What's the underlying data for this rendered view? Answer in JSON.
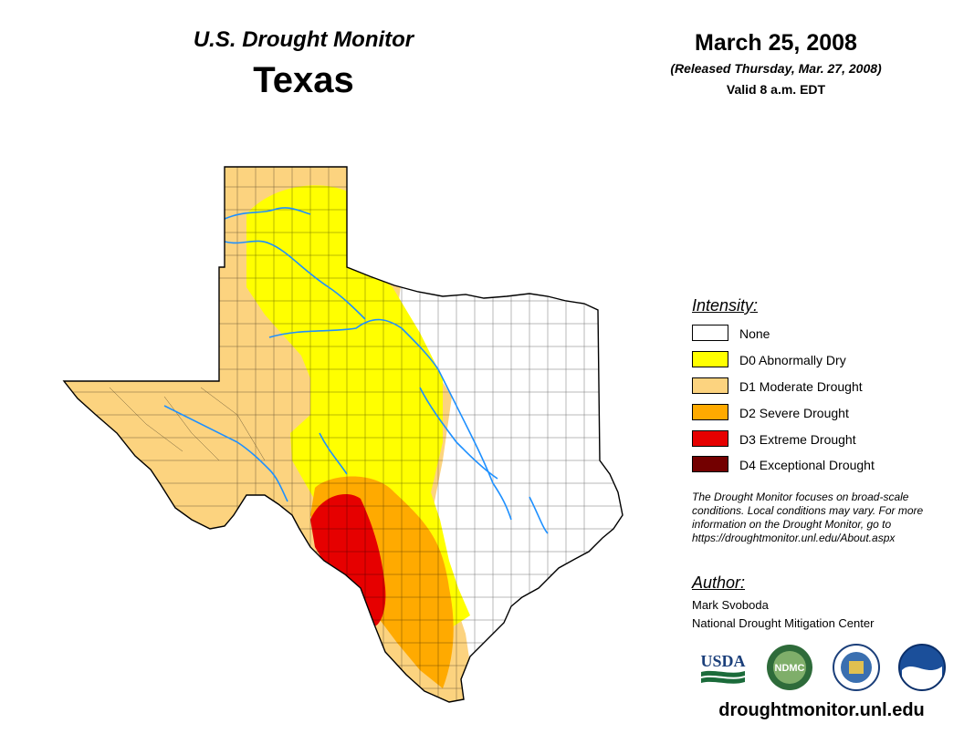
{
  "header": {
    "subtitle": "U.S. Drought Monitor",
    "title": "Texas",
    "date": "March 25, 2008",
    "released": "(Released Thursday, Mar. 27, 2008)",
    "valid": "Valid 8 a.m. EDT"
  },
  "legend": {
    "title": "Intensity:",
    "items": [
      {
        "label": "None",
        "color": "#ffffff"
      },
      {
        "label": "D0 Abnormally Dry",
        "color": "#ffff00"
      },
      {
        "label": "D1 Moderate Drought",
        "color": "#fcd37f"
      },
      {
        "label": "D2 Severe Drought",
        "color": "#ffaa00"
      },
      {
        "label": "D3 Extreme Drought",
        "color": "#e60000"
      },
      {
        "label": "D4 Exceptional Drought",
        "color": "#730000"
      }
    ]
  },
  "note": "The Drought Monitor focuses on broad-scale conditions. Local conditions may vary. For more information on the Drought Monitor, go to https://droughtmonitor.unl.edu/About.aspx",
  "author": {
    "heading": "Author:",
    "name": "Mark Svoboda",
    "organization": "National Drought Mitigation Center"
  },
  "logos": {
    "usda": "USDA",
    "ndmc": "NDMC",
    "commerce": "commerce-seal",
    "noaa": "NOAA"
  },
  "footer": {
    "url": "droughtmonitor.unl.edu"
  }
}
